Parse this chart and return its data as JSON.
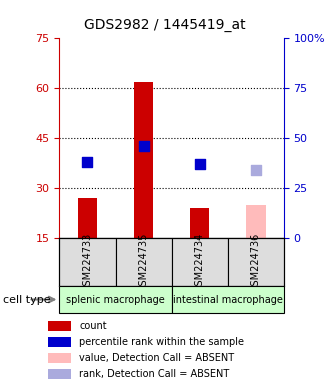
{
  "title": "GDS2982 / 1445419_at",
  "samples": [
    "GSM224733",
    "GSM224735",
    "GSM224734",
    "GSM224736"
  ],
  "bar_values": [
    27,
    62,
    24,
    25
  ],
  "bar_colors": [
    "#cc0000",
    "#cc0000",
    "#cc0000",
    "#ffbbbb"
  ],
  "rank_values": [
    38,
    46,
    37,
    34
  ],
  "rank_colors": [
    "#0000cc",
    "#0000cc",
    "#0000cc",
    "#aaaadd"
  ],
  "cell_types": [
    {
      "label": "splenic macrophage",
      "span": [
        0,
        2
      ]
    },
    {
      "label": "intestinal macrophage",
      "span": [
        2,
        4
      ]
    }
  ],
  "cell_type_bg": "#ccffcc",
  "sample_bg": "#dddddd",
  "ylim_left": [
    15,
    75
  ],
  "ylim_right": [
    0,
    100
  ],
  "yticks_left": [
    15,
    30,
    45,
    60,
    75
  ],
  "yticks_right": [
    0,
    25,
    50,
    75,
    100
  ],
  "yticklabels_right": [
    "0",
    "25",
    "50",
    "75",
    "100%"
  ],
  "left_axis_color": "#cc0000",
  "right_axis_color": "#0000cc",
  "legend_items": [
    {
      "color": "#cc0000",
      "label": "count"
    },
    {
      "color": "#0000cc",
      "label": "percentile rank within the sample"
    },
    {
      "color": "#ffbbbb",
      "label": "value, Detection Call = ABSENT"
    },
    {
      "color": "#aaaadd",
      "label": "rank, Detection Call = ABSENT"
    }
  ],
  "bar_bottom": 15,
  "bar_width": 0.35,
  "rank_marker_size": 60
}
